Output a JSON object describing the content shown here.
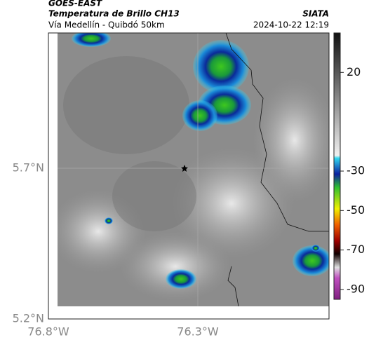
{
  "header": {
    "agency": "GOES-EAST",
    "title": "Temperatura de Brillo CH13",
    "subtitle": "Vía Medellín - Quibdó 50km",
    "source": "SIATA",
    "timestamp": "2024-10-22 12:19"
  },
  "axes": {
    "x_labels": [
      "76.8°W",
      "76.3°W"
    ],
    "y_labels": [
      "5.7°N",
      "5.2°N"
    ]
  },
  "colorbar": {
    "range": [
      40,
      -95
    ],
    "ticks": [
      20,
      -30,
      -50,
      -70,
      -90
    ]
  }
}
